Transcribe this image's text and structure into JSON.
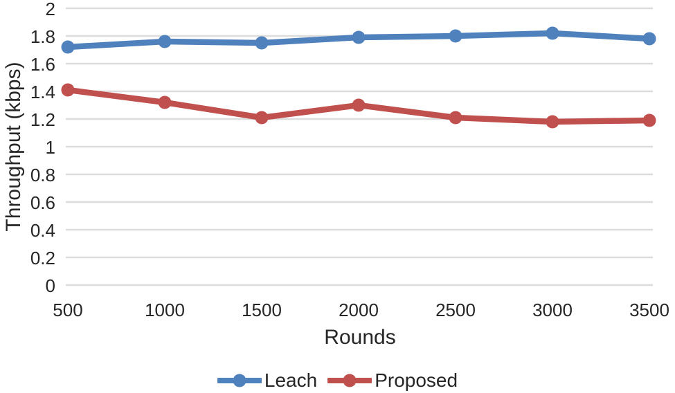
{
  "chart_data": {
    "type": "line",
    "title": "",
    "xlabel": "Rounds",
    "ylabel": "Throughput (kbps)",
    "x": [
      500,
      1000,
      1500,
      2000,
      2500,
      3000,
      3500
    ],
    "series": [
      {
        "name": "Leach",
        "color": "#4F81BD",
        "values": [
          1.72,
          1.76,
          1.75,
          1.79,
          1.8,
          1.82,
          1.78
        ]
      },
      {
        "name": "Proposed",
        "color": "#C0504D",
        "values": [
          1.41,
          1.32,
          1.21,
          1.3,
          1.21,
          1.18,
          1.19
        ]
      }
    ],
    "ylim": [
      0,
      2
    ],
    "ytick_labels": [
      "0",
      "0.2",
      "0.4",
      "0.6",
      "0.8",
      "1",
      "1.2",
      "1.4",
      "1.6",
      "1.8",
      "2"
    ],
    "grid": "horizontal",
    "gridline_color": "#DCDCDC",
    "text_color": "#262626",
    "legend_position": "bottom",
    "legend": [
      "Leach",
      "Proposed"
    ]
  }
}
